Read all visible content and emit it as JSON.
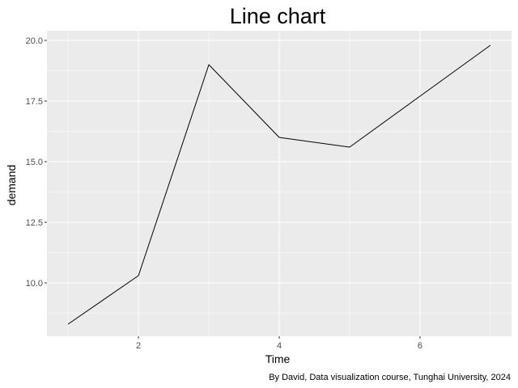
{
  "chart_data": {
    "type": "line",
    "title": "Line chart",
    "xlabel": "Time",
    "ylabel": "demand",
    "caption": "By David, Data visualization course, Tunghai University, 2024",
    "x": [
      1,
      2,
      3,
      4,
      5,
      6,
      7
    ],
    "series": [
      {
        "values": [
          8.3,
          10.3,
          19.0,
          16.0,
          15.6,
          17.7,
          19.8
        ]
      }
    ],
    "xlim": [
      0.7,
      7.3
    ],
    "ylim": [
      7.8,
      20.4
    ],
    "x_ticks": [
      2,
      4,
      6
    ],
    "x_tick_labels": [
      "2",
      "4",
      "6"
    ],
    "y_ticks": [
      10,
      12.5,
      15,
      17.5,
      20
    ],
    "y_tick_labels": [
      "10.0",
      "12.5",
      "15.0",
      "17.5",
      "20.0"
    ],
    "grid": true,
    "colors": {
      "panel": "#ebebeb",
      "grid": "#ffffff",
      "line": "#000000",
      "tick_text": "#4d4d4d"
    }
  }
}
